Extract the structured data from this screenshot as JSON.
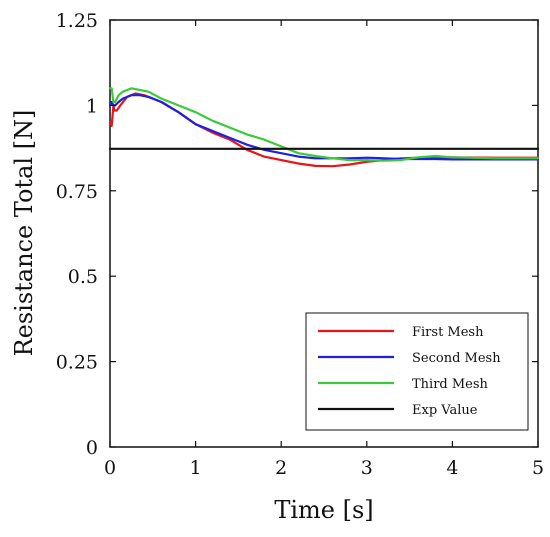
{
  "chart_data": {
    "type": "line",
    "title": "",
    "xlabel": "Time [s]",
    "ylabel": "Resistance Total [N]",
    "xlim": [
      0,
      5
    ],
    "ylim": [
      0,
      1.25
    ],
    "xticks": [
      0,
      1,
      2,
      3,
      4,
      5
    ],
    "xtick_labels": [
      "0",
      "1",
      "2",
      "3",
      "4",
      "5"
    ],
    "yticks": [
      0,
      0.25,
      0.5,
      0.75,
      1,
      1.25
    ],
    "ytick_labels": [
      "0",
      "0.25",
      "0.5",
      "0.75",
      "1",
      "1.25"
    ],
    "grid": false,
    "legend_position": "bottom-right",
    "series": [
      {
        "name": "First Mesh",
        "color": "#e8141b",
        "x": [
          0.0,
          0.02,
          0.04,
          0.05,
          0.08,
          0.12,
          0.2,
          0.3,
          0.4,
          0.6,
          0.8,
          1.0,
          1.2,
          1.4,
          1.6,
          1.8,
          2.0,
          2.2,
          2.4,
          2.6,
          2.8,
          3.0,
          3.2,
          3.4,
          3.6,
          3.8,
          4.0,
          4.5,
          5.0
        ],
        "y": [
          0.95,
          0.94,
          1.0,
          0.985,
          0.985,
          1.0,
          1.025,
          1.035,
          1.03,
          1.01,
          0.98,
          0.945,
          0.92,
          0.9,
          0.87,
          0.85,
          0.84,
          0.83,
          0.823,
          0.822,
          0.827,
          0.835,
          0.84,
          0.845,
          0.847,
          0.848,
          0.848,
          0.847,
          0.847
        ]
      },
      {
        "name": "Second Mesh",
        "color": "#1f1fe0",
        "x": [
          0.0,
          0.02,
          0.04,
          0.06,
          0.1,
          0.15,
          0.25,
          0.35,
          0.45,
          0.6,
          0.8,
          1.0,
          1.2,
          1.4,
          1.6,
          1.8,
          2.0,
          2.2,
          2.4,
          2.6,
          2.8,
          3.0,
          3.2,
          3.4,
          3.6,
          3.8,
          4.0,
          4.5,
          5.0
        ],
        "y": [
          1.0,
          1.01,
          1.0,
          1.0,
          1.01,
          1.02,
          1.03,
          1.03,
          1.025,
          1.01,
          0.98,
          0.945,
          0.925,
          0.905,
          0.885,
          0.87,
          0.86,
          0.85,
          0.845,
          0.845,
          0.845,
          0.847,
          0.845,
          0.843,
          0.843,
          0.843,
          0.842,
          0.842,
          0.842
        ]
      },
      {
        "name": "Third Mesh",
        "color": "#3ec83c",
        "x": [
          0.0,
          0.02,
          0.04,
          0.06,
          0.1,
          0.15,
          0.25,
          0.35,
          0.45,
          0.6,
          0.8,
          1.0,
          1.2,
          1.4,
          1.6,
          1.8,
          2.0,
          2.2,
          2.4,
          2.6,
          2.8,
          3.0,
          3.2,
          3.4,
          3.6,
          3.8,
          4.0,
          4.5,
          5.0
        ],
        "y": [
          1.05,
          1.05,
          1.01,
          1.01,
          1.03,
          1.04,
          1.05,
          1.045,
          1.04,
          1.02,
          1.0,
          0.98,
          0.955,
          0.935,
          0.915,
          0.9,
          0.88,
          0.86,
          0.852,
          0.845,
          0.84,
          0.84,
          0.838,
          0.84,
          0.848,
          0.852,
          0.848,
          0.845,
          0.845
        ]
      },
      {
        "name": "Exp Value",
        "color": "#111111",
        "x": [
          0,
          5
        ],
        "y": [
          0.873,
          0.873
        ]
      }
    ]
  }
}
